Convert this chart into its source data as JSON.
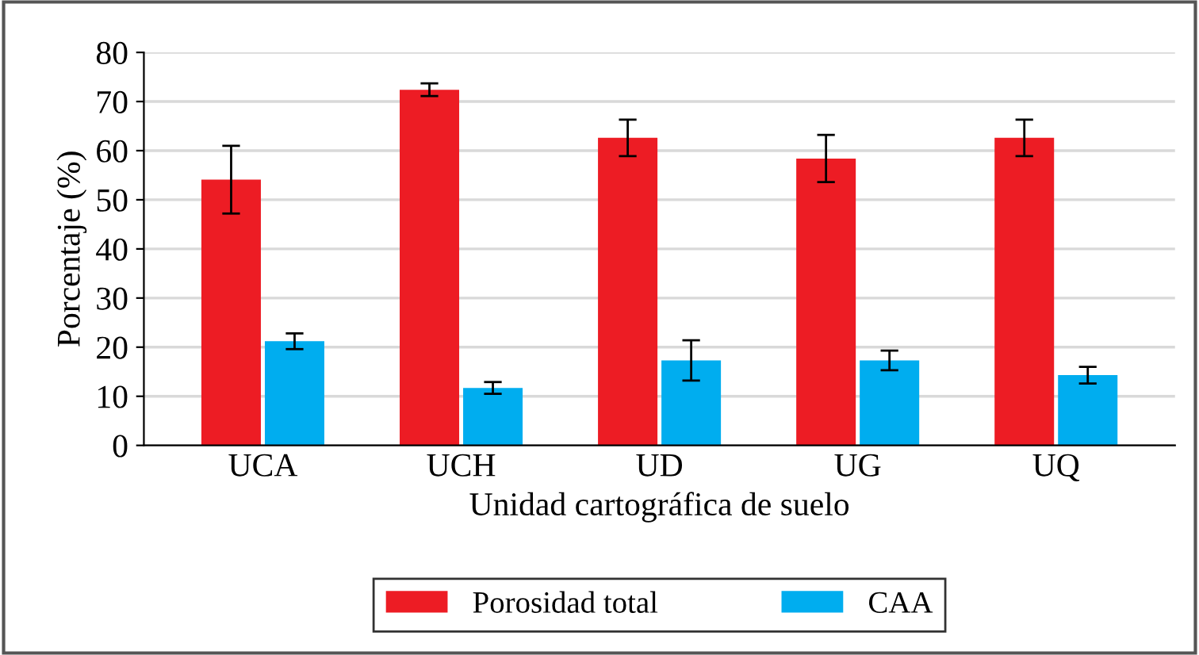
{
  "chart_data": {
    "type": "bar",
    "xlabel": "Unidad cartográfica de suelo",
    "ylabel": "Porcentaje (%)",
    "categories": [
      "UCA",
      "UCH",
      "UD",
      "UG",
      "UQ"
    ],
    "series": [
      {
        "name": "Porosidad total",
        "color": "#ed1c24",
        "values": [
          54.1,
          72.4,
          62.6,
          58.4,
          62.6
        ],
        "errors": [
          6.9,
          1.3,
          3.7,
          4.8,
          3.7
        ]
      },
      {
        "name": "CAA",
        "color": "#00adef",
        "values": [
          21.2,
          11.7,
          17.3,
          17.3,
          14.3
        ],
        "errors": [
          1.6,
          1.2,
          4.1,
          2.0,
          1.7
        ]
      }
    ],
    "ylim": [
      0,
      80
    ],
    "yticks": [
      0,
      10,
      20,
      30,
      40,
      50,
      60,
      70,
      80
    ],
    "grid": "y",
    "legend": "bottom"
  }
}
